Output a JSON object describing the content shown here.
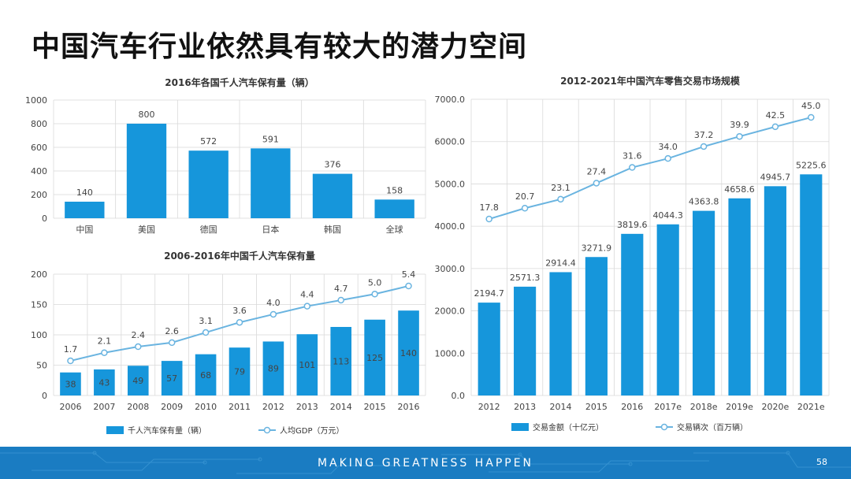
{
  "slide": {
    "title": "中国汽车行业依然具有较大的潜力空间",
    "footer_tagline": "MAKING GREATNESS HAPPEN",
    "page_number": "58"
  },
  "colors": {
    "bar": "#1696db",
    "line": "#6ab4e0",
    "grid": "#d9d9d9",
    "axis_text": "#444444"
  },
  "chart_data": [
    {
      "id": "c1",
      "type": "bar",
      "title": "2016年各国千人汽车保有量（辆）",
      "categories": [
        "中国",
        "美国",
        "德国",
        "日本",
        "韩国",
        "全球"
      ],
      "values": [
        140,
        800,
        572,
        591,
        376,
        158
      ],
      "ylim": [
        0,
        1000
      ],
      "yticks": [
        0,
        200,
        400,
        600,
        800,
        1000
      ],
      "ytick_labels": [
        "0",
        "200",
        "400",
        "600",
        "800",
        "1000"
      ],
      "grid": true,
      "legend": []
    },
    {
      "id": "c2",
      "type": "bar",
      "title": "2006-2016年中国千人汽车保有量",
      "categories": [
        "2006",
        "2007",
        "2008",
        "2009",
        "2010",
        "2011",
        "2012",
        "2013",
        "2014",
        "2015",
        "2016"
      ],
      "series": [
        {
          "name": "千人汽车保有量（辆）",
          "kind": "bar",
          "values": [
            38,
            43,
            49,
            57,
            68,
            79,
            89,
            101,
            113,
            125,
            140
          ],
          "labels": [
            "38",
            "43",
            "49",
            "57",
            "68",
            "79",
            "89",
            "101",
            "113",
            "125",
            "140"
          ]
        },
        {
          "name": "人均GDP（万元）",
          "kind": "line",
          "values": [
            1.7,
            2.1,
            2.4,
            2.6,
            3.1,
            3.6,
            4.0,
            4.4,
            4.7,
            5.0,
            5.4
          ],
          "labels": [
            "1.7",
            "2.1",
            "2.4",
            "2.6",
            "3.1",
            "3.6",
            "4.0",
            "4.4",
            "4.7",
            "5.0",
            "5.4"
          ]
        }
      ],
      "ylim": [
        0,
        200
      ],
      "yticks": [
        0,
        50,
        100,
        150,
        200
      ],
      "ytick_labels": [
        "0",
        "50",
        "100",
        "150",
        "200"
      ],
      "grid": true,
      "legend_position": "bottom"
    },
    {
      "id": "c3",
      "type": "bar",
      "title": "2012-2021年中国汽车零售交易市场规模",
      "categories": [
        "2012",
        "2013",
        "2014",
        "2015",
        "2016",
        "2017e",
        "2018e",
        "2019e",
        "2020e",
        "2021e"
      ],
      "series": [
        {
          "name": "交易金额（十亿元）",
          "kind": "bar",
          "values": [
            2194.7,
            2571.3,
            2914.4,
            3271.9,
            3819.6,
            4044.3,
            4363.8,
            4658.6,
            4945.7,
            5225.6
          ],
          "labels": [
            "2194.7",
            "2571.3",
            "2914.4",
            "3271.9",
            "3819.6",
            "4044.3",
            "4363.8",
            "4658.6",
            "4945.7",
            "5225.6"
          ]
        },
        {
          "name": "交易辆次（百万辆）",
          "kind": "line",
          "values": [
            17.8,
            20.7,
            23.1,
            27.4,
            31.6,
            34.0,
            37.2,
            39.9,
            42.5,
            45.0
          ],
          "labels": [
            "17.8",
            "20.7",
            "23.1",
            "27.4",
            "31.6",
            "34.0",
            "37.2",
            "39.9",
            "42.5",
            "45.0"
          ]
        }
      ],
      "ylim": [
        0,
        7000
      ],
      "yticks": [
        0,
        1000,
        2000,
        3000,
        4000,
        5000,
        6000,
        7000
      ],
      "ytick_labels": [
        "0.0",
        "1000.0",
        "2000.0",
        "3000.0",
        "4000.0",
        "5000.0",
        "6000.0",
        "7000.0"
      ],
      "grid": true,
      "legend_position": "bottom"
    }
  ]
}
